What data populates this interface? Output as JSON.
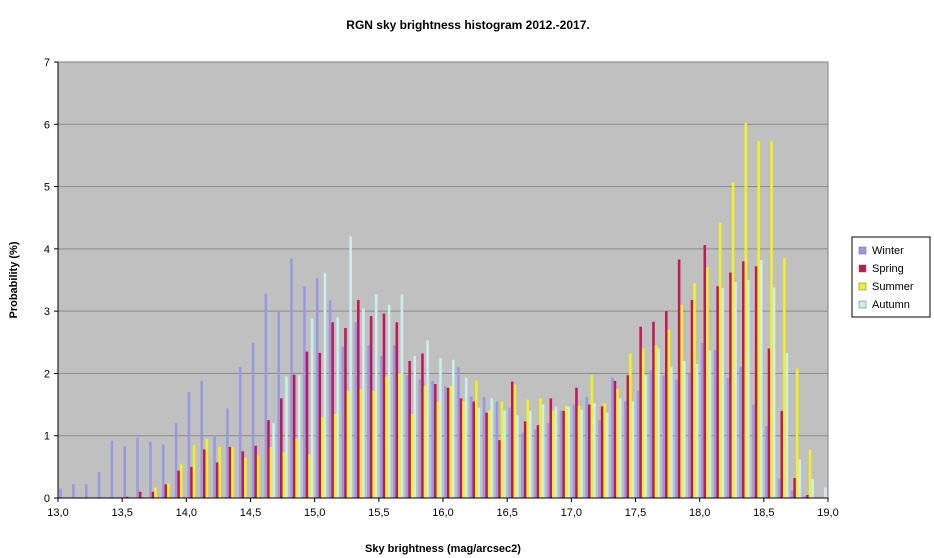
{
  "chart_data": {
    "type": "bar",
    "title": "RGN sky brightness histogram 2012.-2017.",
    "xlabel": "Sky brightness (mag/arcsec2)",
    "ylabel": "Probability (%)",
    "xlim": [
      13.0,
      19.0
    ],
    "ylim": [
      0,
      7
    ],
    "xticks": [
      "13,0",
      "13,5",
      "14,0",
      "14,5",
      "15,0",
      "15,5",
      "16,0",
      "16,5",
      "17,0",
      "17,5",
      "18,0",
      "18,5",
      "19,0"
    ],
    "yticks": [
      "0",
      "1",
      "2",
      "3",
      "4",
      "5",
      "6",
      "7"
    ],
    "grid": true,
    "legend_position": "right",
    "bin_start": 13.0,
    "bin_width": 0.1,
    "series": [
      {
        "name": "Winter",
        "color": "#9999DD",
        "values": [
          0.15,
          0.22,
          0.22,
          0.42,
          0.92,
          0.83,
          0.97,
          0.9,
          0.86,
          1.2,
          1.7,
          1.88,
          1.0,
          1.44,
          2.1,
          2.49,
          3.28,
          3.0,
          3.84,
          3.4,
          3.53,
          3.17,
          2.43,
          2.82,
          2.45,
          2.28,
          2.45,
          1.97,
          1.9,
          1.88,
          1.79,
          2.1,
          1.63,
          1.62,
          1.55,
          1.45,
          1.05,
          1.1,
          1.2,
          1.4,
          1.5,
          1.62,
          1.25,
          1.93,
          1.55,
          1.72,
          2.05,
          1.97,
          1.9,
          2.0,
          2.49,
          2.38,
          1.93,
          2.1,
          1.5,
          1.15,
          0.3,
          0.12,
          0.03,
          0.0
        ]
      },
      {
        "name": "Spring",
        "color": "#C0185A",
        "values": [
          0.0,
          0.0,
          0.0,
          0.0,
          0.0,
          0.02,
          0.1,
          0.1,
          0.22,
          0.44,
          0.5,
          0.78,
          0.57,
          0.82,
          0.75,
          0.84,
          1.25,
          1.6,
          1.98,
          2.35,
          2.33,
          2.82,
          2.73,
          3.18,
          2.92,
          2.96,
          2.82,
          2.2,
          2.32,
          1.83,
          1.77,
          1.6,
          1.55,
          1.37,
          0.93,
          1.87,
          1.23,
          1.17,
          1.6,
          1.4,
          1.77,
          1.5,
          1.47,
          1.88,
          1.97,
          2.75,
          2.83,
          3.0,
          3.83,
          3.18,
          4.06,
          3.4,
          3.62,
          3.8,
          3.72,
          2.4,
          1.4,
          0.32,
          0.05,
          0.0
        ]
      },
      {
        "name": "Summer",
        "color": "#F2F220",
        "values": [
          0.0,
          0.0,
          0.0,
          0.0,
          0.0,
          0.0,
          0.0,
          0.17,
          0.23,
          0.55,
          0.85,
          0.95,
          0.82,
          0.82,
          0.65,
          0.68,
          0.82,
          0.73,
          0.95,
          0.7,
          1.3,
          1.35,
          1.72,
          1.75,
          1.72,
          1.95,
          2.0,
          1.35,
          1.8,
          1.55,
          1.8,
          1.55,
          1.88,
          1.4,
          1.55,
          1.82,
          1.58,
          1.6,
          1.4,
          1.48,
          1.48,
          1.97,
          1.52,
          1.75,
          2.32,
          2.4,
          2.45,
          2.7,
          3.1,
          3.45,
          3.7,
          4.42,
          5.07,
          6.02,
          5.73,
          5.73,
          3.85,
          2.08,
          0.78,
          0.0
        ]
      },
      {
        "name": "Autumn",
        "color": "#CCEEEE",
        "values": [
          0.0,
          0.0,
          0.0,
          0.0,
          0.0,
          0.0,
          0.0,
          0.0,
          0.0,
          0.0,
          0.0,
          0.0,
          0.0,
          0.0,
          0.0,
          0.0,
          1.2,
          1.95,
          1.97,
          2.88,
          3.62,
          2.9,
          4.2,
          3.05,
          3.27,
          3.1,
          3.27,
          2.28,
          2.53,
          2.25,
          2.22,
          1.93,
          1.45,
          1.6,
          1.4,
          1.33,
          1.4,
          1.5,
          1.47,
          1.47,
          1.42,
          1.52,
          1.37,
          1.6,
          1.55,
          1.97,
          2.4,
          2.1,
          2.2,
          2.15,
          2.37,
          3.37,
          3.47,
          3.5,
          3.82,
          3.38,
          2.33,
          0.62,
          0.3,
          0.17
        ]
      }
    ]
  }
}
